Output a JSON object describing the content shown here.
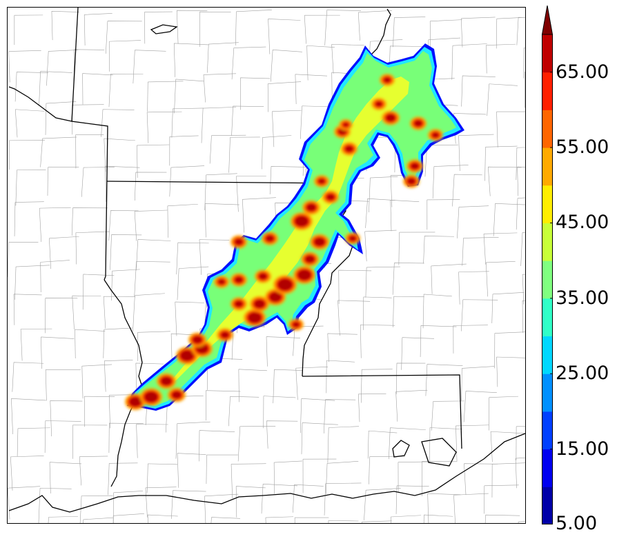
{
  "colorbar": {
    "min": 5,
    "max": 70,
    "step": 5,
    "extend": "max",
    "tick_labels": [
      "5.00",
      "15.00",
      "25.00",
      "35.00",
      "45.00",
      "55.00",
      "65.00"
    ],
    "tick_values": [
      5,
      15,
      25,
      35,
      45,
      55,
      65
    ],
    "colors": [
      "#0000a8",
      "#0000f0",
      "#0040ff",
      "#0090ff",
      "#00d8ff",
      "#30ffc8",
      "#80ff80",
      "#c8ff38",
      "#ffee00",
      "#ffaa00",
      "#ff6600",
      "#ff2000",
      "#c00000"
    ],
    "extend_color": "#800000"
  },
  "map": {
    "field_legend": "reflectivity-style shaded values, 5 to 70",
    "border_color": "#000000",
    "county_color": "#9a9a9a"
  }
}
